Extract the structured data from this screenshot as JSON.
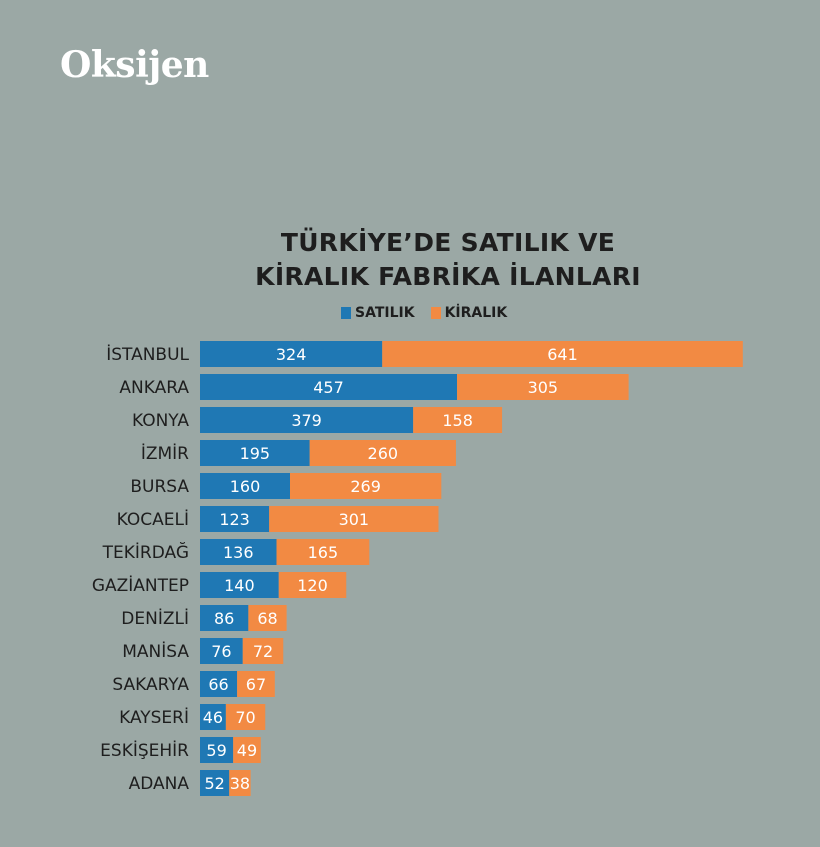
{
  "brand": {
    "logo_text": "Oksijen"
  },
  "chart_data": {
    "type": "bar",
    "orientation": "horizontal",
    "stacked": true,
    "title_lines": [
      "TÜRKİYE’DE SATILIK VE",
      "KİRALIK FABRİKA İLANLARI"
    ],
    "categories": [
      "İSTANBUL",
      "ANKARA",
      "KONYA",
      "İZMİR",
      "BURSA",
      "KOCAELİ",
      "TEKİRDAĞ",
      "GAZİANTEP",
      "DENİZLİ",
      "MANİSA",
      "SAKARYA",
      "KAYSERİ",
      "ESKİŞEHİR",
      "ADANA"
    ],
    "series": [
      {
        "name": "SATILIK",
        "color": "#1f78b4",
        "values": [
          324,
          457,
          379,
          195,
          160,
          123,
          136,
          140,
          86,
          76,
          66,
          46,
          59,
          52
        ]
      },
      {
        "name": "KİRALIK",
        "color": "#f28a43",
        "values": [
          641,
          305,
          158,
          260,
          269,
          301,
          165,
          120,
          68,
          72,
          67,
          70,
          49,
          38
        ]
      }
    ],
    "legend_position": "top-center",
    "grid": false
  }
}
